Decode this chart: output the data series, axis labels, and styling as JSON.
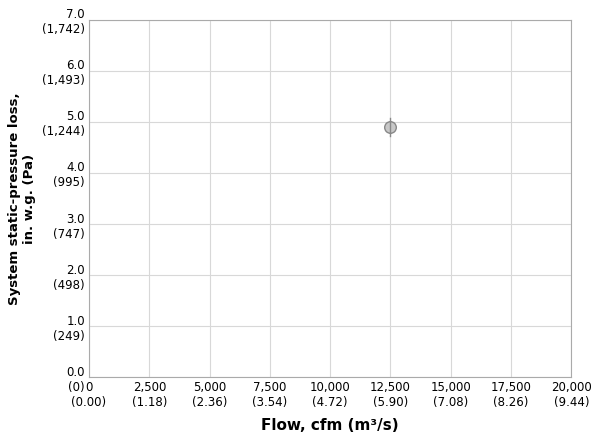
{
  "title": "",
  "xlabel": "Flow, cfm (m³/s)",
  "ylabel": "System static-pressure loss,\nin. w.g. (Pa)",
  "xlim": [
    0,
    20000
  ],
  "ylim": [
    0.0,
    7.0
  ],
  "x_ticks_cfm": [
    0,
    2500,
    5000,
    7500,
    10000,
    12500,
    15000,
    17500,
    20000
  ],
  "x_ticks_m3s": [
    "(0.00)",
    "(1.18)",
    "(2.36)",
    "(3.54)",
    "(4.72)",
    "(5.90)",
    "(7.08)",
    "(8.26)",
    "(9.44)"
  ],
  "y_ticks_inwg": [
    0.0,
    1.0,
    2.0,
    3.0,
    4.0,
    5.0,
    6.0,
    7.0
  ],
  "y_ticks_pa": [
    "(0)",
    "(249)",
    "(498)",
    "(747)",
    "(995)",
    "(1,244)",
    "(1,493)",
    "(1,742)"
  ],
  "point_x": 12500,
  "point_y": 4.9,
  "point_color": "#c8c8c8",
  "point_edgecolor": "#888888",
  "grid_color": "#d8d8d8",
  "plot_background": "#ffffff",
  "fig_background": "#ffffff",
  "xlabel_fontsize": 11,
  "ylabel_fontsize": 9.5,
  "tick_fontsize": 8.5
}
